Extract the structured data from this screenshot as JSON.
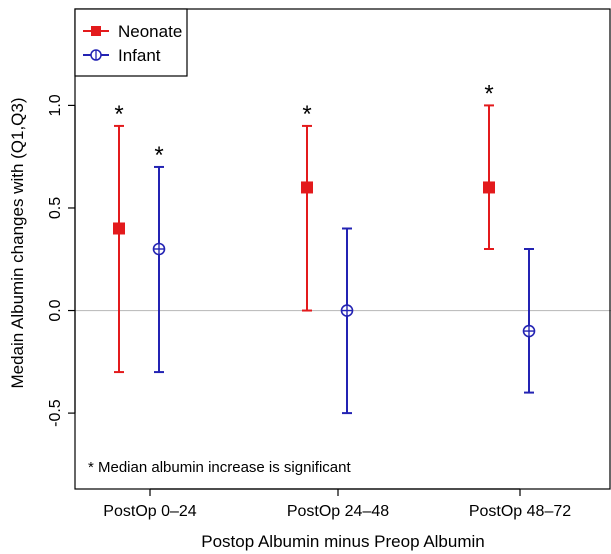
{
  "chart_data": {
    "type": "errorbar",
    "title": "",
    "xlabel": "Postop Albumin minus Preop Albumin",
    "ylabel": "Medain Albumin changes with (Q1,Q3)",
    "ylim": [
      -0.87,
      1.47
    ],
    "yticks": [
      "-0.5",
      "0.0",
      "0.5",
      "1.0"
    ],
    "yticks_values": [
      -0.5,
      0.0,
      0.5,
      1.0
    ],
    "reference_line": 0.0,
    "reference_line_color": "#bfbfbf",
    "categories": [
      "PostOp 0–24",
      "PostOp 24–48",
      "PostOp 48–72"
    ],
    "series": [
      {
        "name": "Neonate",
        "color": "#e31a1c",
        "marker": "filled-square",
        "median": [
          0.4,
          0.6,
          0.6
        ],
        "q1": [
          -0.3,
          0.0,
          0.3
        ],
        "q3": [
          0.9,
          0.9,
          1.0
        ],
        "significant": [
          true,
          true,
          true
        ]
      },
      {
        "name": "Infant",
        "color": "#2323b3",
        "marker": "circle-plus",
        "median": [
          0.3,
          0.0,
          -0.1
        ],
        "q1": [
          -0.3,
          -0.5,
          -0.4
        ],
        "q3": [
          0.7,
          0.4,
          0.3
        ],
        "significant": [
          true,
          false,
          false
        ]
      }
    ],
    "significance_symbol": "*",
    "annotation": "* Median albumin increase is significant",
    "legend": "top-left",
    "grid": false
  }
}
